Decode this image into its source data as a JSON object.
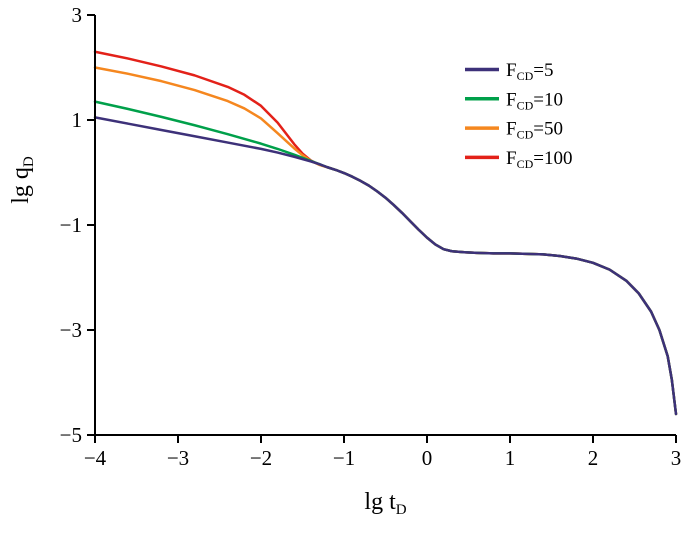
{
  "chart_data": {
    "type": "line",
    "title": "",
    "xlabel": {
      "main": "lg t",
      "sub": "D"
    },
    "ylabel": {
      "main": "lg q",
      "sub": "D"
    },
    "xlim": [
      -4,
      3
    ],
    "ylim": [
      -5,
      3
    ],
    "x_ticks": [
      -4,
      -3,
      -2,
      -1,
      0,
      1,
      2,
      3
    ],
    "y_ticks": [
      3,
      1,
      -1,
      -3,
      -5
    ],
    "grid": false,
    "legend_position": "top-right",
    "axis_color": "#000000",
    "background": "#ffffff",
    "common_curve": [
      [
        -1.2,
        0.1
      ],
      [
        -1.1,
        0.05
      ],
      [
        -1.0,
        -0.01
      ],
      [
        -0.9,
        -0.08
      ],
      [
        -0.8,
        -0.16
      ],
      [
        -0.7,
        -0.25
      ],
      [
        -0.6,
        -0.36
      ],
      [
        -0.5,
        -0.48
      ],
      [
        -0.4,
        -0.62
      ],
      [
        -0.3,
        -0.77
      ],
      [
        -0.2,
        -0.93
      ],
      [
        -0.1,
        -1.09
      ],
      [
        0.0,
        -1.24
      ],
      [
        0.1,
        -1.37
      ],
      [
        0.2,
        -1.46
      ],
      [
        0.3,
        -1.5
      ],
      [
        0.45,
        -1.52
      ],
      [
        0.6,
        -1.53
      ],
      [
        0.8,
        -1.54
      ],
      [
        1.0,
        -1.54
      ],
      [
        1.2,
        -1.55
      ],
      [
        1.4,
        -1.56
      ],
      [
        1.6,
        -1.59
      ],
      [
        1.8,
        -1.64
      ],
      [
        2.0,
        -1.72
      ],
      [
        2.2,
        -1.85
      ],
      [
        2.4,
        -2.06
      ],
      [
        2.55,
        -2.3
      ],
      [
        2.7,
        -2.65
      ],
      [
        2.8,
        -3.0
      ],
      [
        2.9,
        -3.5
      ],
      [
        2.95,
        -3.95
      ],
      [
        3.0,
        -4.6
      ]
    ],
    "series": [
      {
        "id": "fcd-5",
        "label": {
          "main": "F",
          "sub": "CD",
          "suffix": "=5"
        },
        "color": "#3d3179",
        "branch": [
          [
            -4.0,
            1.05
          ],
          [
            -3.6,
            0.93
          ],
          [
            -3.2,
            0.81
          ],
          [
            -2.8,
            0.69
          ],
          [
            -2.4,
            0.57
          ],
          [
            -2.0,
            0.45
          ],
          [
            -1.8,
            0.38
          ],
          [
            -1.6,
            0.3
          ],
          [
            -1.4,
            0.21
          ],
          [
            -1.3,
            0.16
          ]
        ]
      },
      {
        "id": "fcd-10",
        "label": {
          "main": "F",
          "sub": "CD",
          "suffix": "=10"
        },
        "color": "#00a04a",
        "branch": [
          [
            -4.0,
            1.35
          ],
          [
            -3.6,
            1.21
          ],
          [
            -3.2,
            1.06
          ],
          [
            -2.8,
            0.9
          ],
          [
            -2.4,
            0.73
          ],
          [
            -2.0,
            0.55
          ],
          [
            -1.8,
            0.45
          ],
          [
            -1.6,
            0.34
          ],
          [
            -1.4,
            0.22
          ],
          [
            -1.3,
            0.16
          ]
        ]
      },
      {
        "id": "fcd-50",
        "label": {
          "main": "F",
          "sub": "CD",
          "suffix": "=50"
        },
        "color": "#f5871f",
        "branch": [
          [
            -4.0,
            2.0
          ],
          [
            -3.6,
            1.88
          ],
          [
            -3.2,
            1.74
          ],
          [
            -2.8,
            1.57
          ],
          [
            -2.4,
            1.36
          ],
          [
            -2.2,
            1.22
          ],
          [
            -2.0,
            1.03
          ],
          [
            -1.8,
            0.75
          ],
          [
            -1.6,
            0.46
          ],
          [
            -1.5,
            0.33
          ],
          [
            -1.4,
            0.22
          ],
          [
            -1.3,
            0.15
          ]
        ]
      },
      {
        "id": "fcd-100",
        "label": {
          "main": "F",
          "sub": "CD",
          "suffix": "=100"
        },
        "color": "#e32119",
        "branch": [
          [
            -4.0,
            2.3
          ],
          [
            -3.6,
            2.17
          ],
          [
            -3.2,
            2.02
          ],
          [
            -2.8,
            1.85
          ],
          [
            -2.4,
            1.63
          ],
          [
            -2.2,
            1.48
          ],
          [
            -2.0,
            1.27
          ],
          [
            -1.8,
            0.95
          ],
          [
            -1.6,
            0.54
          ],
          [
            -1.5,
            0.36
          ],
          [
            -1.4,
            0.23
          ],
          [
            -1.3,
            0.15
          ]
        ]
      }
    ]
  }
}
